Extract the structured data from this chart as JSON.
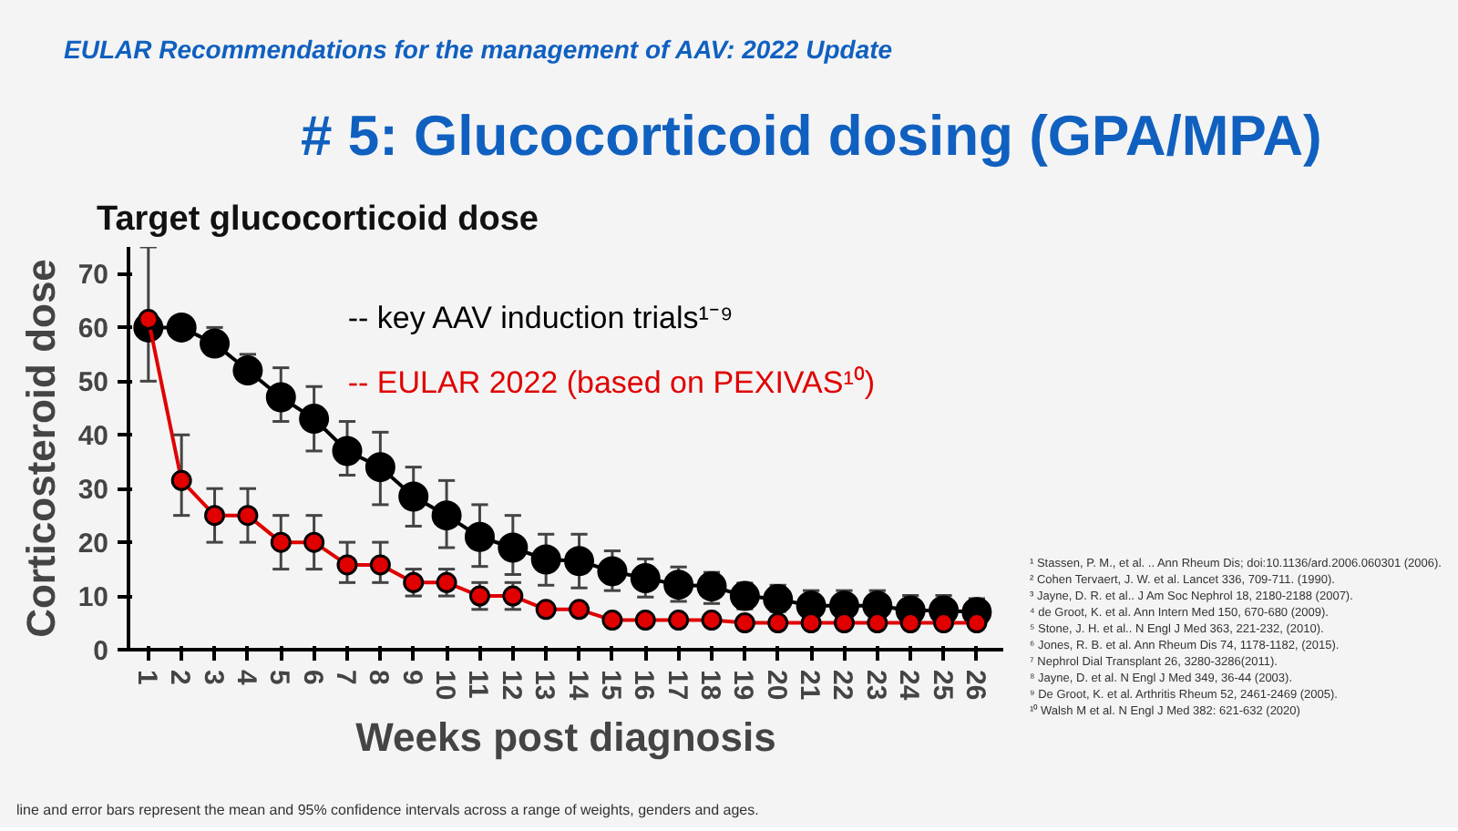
{
  "chart_data": {
    "type": "line",
    "title": "Target glucocorticoid dose",
    "xlabel": "Weeks post diagnosis",
    "ylabel": "Corticosteroid dose",
    "categories": [
      "1",
      "2",
      "3",
      "4",
      "5",
      "6",
      "7",
      "8",
      "9",
      "10",
      "11",
      "12",
      "13",
      "14",
      "15",
      "16",
      "17",
      "18",
      "19",
      "20",
      "21",
      "22",
      "23",
      "24",
      "25",
      "26"
    ],
    "ylim": [
      0,
      75
    ],
    "yticks": [
      0,
      10,
      20,
      30,
      40,
      50,
      60,
      70
    ],
    "grid": false,
    "marker": "circle",
    "line_style": "solid",
    "series": [
      {
        "name": "-- key AAV induction trials¹⁻⁹",
        "color": "#000000",
        "values": [
          60,
          60,
          57,
          52,
          47,
          43,
          37,
          34,
          28.5,
          25,
          21,
          19,
          16.8,
          16.5,
          14.6,
          13.3,
          12.1,
          11.8,
          10,
          9.4,
          8.2,
          8.2,
          8.2,
          7.3,
          7.3,
          7
        ],
        "errors": [
          [
            50,
            75
          ],
          null,
          [
            55,
            60
          ],
          [
            50,
            55
          ],
          [
            42.5,
            52.5
          ],
          [
            37,
            49
          ],
          [
            32.5,
            42.5
          ],
          [
            27,
            40.5
          ],
          [
            23,
            34
          ],
          [
            19,
            31.5
          ],
          [
            15.5,
            27
          ],
          [
            14,
            25
          ],
          [
            12,
            21.5
          ],
          [
            11.5,
            21.5
          ],
          [
            11,
            18.4
          ],
          [
            9.8,
            16.9
          ],
          [
            9,
            15.4
          ],
          [
            8.6,
            14.4
          ],
          [
            7.6,
            12.4
          ],
          [
            7.1,
            12
          ],
          [
            6.4,
            11
          ],
          [
            6.4,
            11
          ],
          [
            6.4,
            11
          ],
          [
            5.8,
            10.1
          ],
          [
            5.8,
            10.1
          ],
          [
            5.5,
            9.5
          ]
        ]
      },
      {
        "name": "-- EULAR 2022 (based on PEXIVAS¹⁰)",
        "color": "#e00000",
        "values": [
          61.5,
          31.5,
          25,
          25,
          20,
          20,
          15.8,
          15.8,
          12.5,
          12.5,
          10,
          10,
          7.5,
          7.5,
          5.5,
          5.5,
          5.5,
          5.5,
          5,
          5,
          5,
          5,
          5,
          5,
          5,
          5
        ],
        "errors": [
          null,
          [
            25,
            40
          ],
          [
            20,
            30
          ],
          [
            20,
            30
          ],
          [
            15,
            25
          ],
          [
            15,
            25
          ],
          [
            12.5,
            20
          ],
          [
            12.5,
            20
          ],
          [
            10,
            15
          ],
          [
            10,
            15
          ],
          [
            7.5,
            12.5
          ],
          [
            7.5,
            12.5
          ],
          null,
          null,
          null,
          null,
          null,
          null,
          null,
          null,
          null,
          null,
          null,
          null,
          null,
          null
        ]
      }
    ],
    "annotations": [
      "EULAR Recommendations for the management of AAV: 2022 Update",
      "# 5: Glucocorticoid dosing (GPA/MPA)",
      "¹ Stassen, P. M., et al. .. Ann Rheum Dis; doi:10.1136/ard.2006.060301 (2006).",
      "² Cohen Tervaert, J. W. et al. Lancet 336, 709-711. (1990).",
      "³ Jayne, D. R. et al.. J Am Soc Nephrol 18, 2180-2188 (2007).",
      "⁴ de Groot, K. et al. Ann Intern Med 150, 670-680 (2009).",
      "⁵ Stone, J. H. et al.. N Engl J Med 363, 221-232, (2010).",
      "⁶ Jones, R. B. et al. Ann Rheum Dis 74, 1178-1182, (2015).",
      "⁷ Nephrol Dial Transplant 26, 3280-3286(2011).",
      "⁸ Jayne, D. et al. N Engl J Med 349, 36-44 (2003).",
      "⁹ De Groot, K. et al. Arthritis Rheum 52, 2461-2469 (2005).",
      "¹⁰ Walsh M et al. N Engl J Med 382: 621-632 (2020)",
      "line and error bars represent the mean and 95% confidence intervals across a range of weights, genders and ages."
    ]
  }
}
